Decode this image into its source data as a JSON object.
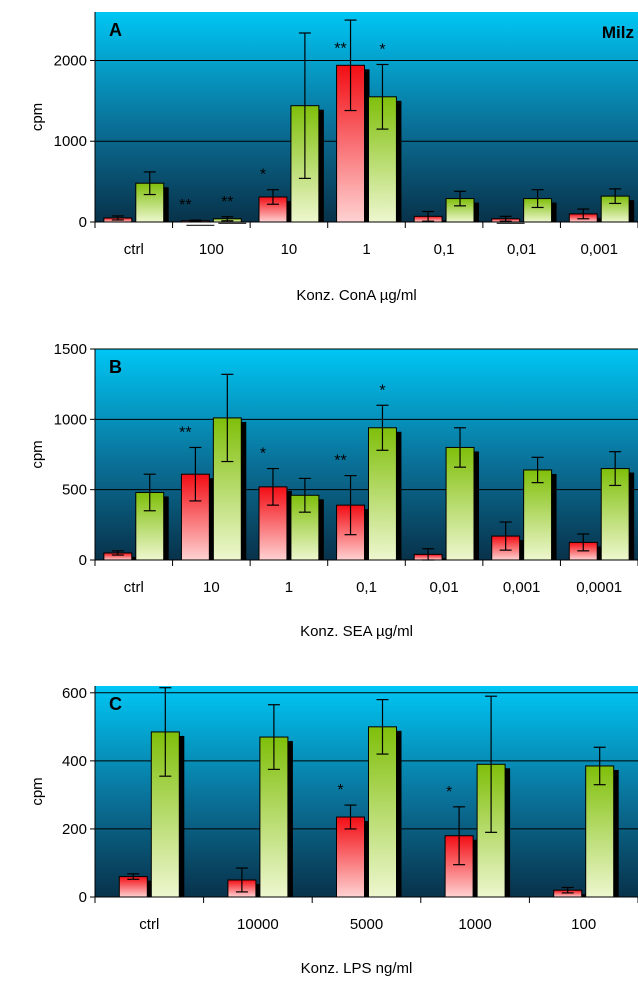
{
  "chart_data": [
    {
      "type": "bar",
      "panel_label": "A",
      "organ_label": "Milz",
      "ylabel": "cpm",
      "xlabel": "Konz. ConA µg/ml",
      "categories": [
        "ctrl",
        "100",
        "10",
        "1",
        "0,1",
        "0,01",
        "0,001"
      ],
      "ylim": [
        0,
        2600
      ],
      "yticks": [
        0,
        1000,
        2000
      ],
      "grid": true,
      "series": [
        {
          "color": "red",
          "values": [
            50,
            15,
            310,
            1940,
            70,
            40,
            100
          ],
          "errors": [
            25,
            8,
            90,
            560,
            60,
            30,
            60
          ],
          "stars": [
            "",
            "**",
            "*",
            "**",
            "",
            "",
            ""
          ]
        },
        {
          "color": "green",
          "values": [
            480,
            40,
            1440,
            1550,
            290,
            290,
            320
          ],
          "errors": [
            140,
            25,
            900,
            400,
            90,
            110,
            90
          ],
          "stars": [
            "",
            "**",
            "",
            "*",
            "",
            "",
            ""
          ]
        }
      ]
    },
    {
      "type": "bar",
      "panel_label": "B",
      "organ_label": "",
      "ylabel": "cpm",
      "xlabel": "Konz. SEA µg/ml",
      "categories": [
        "ctrl",
        "10",
        "1",
        "0,1",
        "0,01",
        "0,001",
        "0,0001"
      ],
      "ylim": [
        0,
        1500
      ],
      "yticks": [
        0,
        500,
        1000,
        1500
      ],
      "grid": true,
      "series": [
        {
          "color": "red",
          "values": [
            50,
            610,
            520,
            390,
            40,
            170,
            125
          ],
          "errors": [
            15,
            190,
            130,
            210,
            40,
            100,
            60
          ],
          "stars": [
            "",
            "**",
            "*",
            "**",
            "",
            "",
            ""
          ]
        },
        {
          "color": "green",
          "values": [
            480,
            1010,
            460,
            940,
            800,
            640,
            650
          ],
          "errors": [
            130,
            310,
            120,
            160,
            140,
            90,
            120
          ],
          "stars": [
            "",
            "",
            "",
            "*",
            "",
            "",
            ""
          ]
        }
      ]
    },
    {
      "type": "bar",
      "panel_label": "C",
      "organ_label": "",
      "ylabel": "cpm",
      "xlabel": "Konz. LPS ng/ml",
      "categories": [
        "ctrl",
        "10000",
        "5000",
        "1000",
        "100"
      ],
      "ylim": [
        0,
        620
      ],
      "yticks": [
        0,
        200,
        400,
        600
      ],
      "grid": true,
      "series": [
        {
          "color": "red",
          "values": [
            60,
            50,
            235,
            180,
            20
          ],
          "errors": [
            8,
            35,
            35,
            85,
            8
          ],
          "stars": [
            "",
            "",
            "*",
            "*",
            ""
          ]
        },
        {
          "color": "green",
          "values": [
            485,
            470,
            500,
            390,
            385
          ],
          "errors": [
            130,
            95,
            80,
            200,
            55
          ],
          "stars": [
            "",
            "",
            "",
            "",
            ""
          ]
        }
      ]
    }
  ]
}
